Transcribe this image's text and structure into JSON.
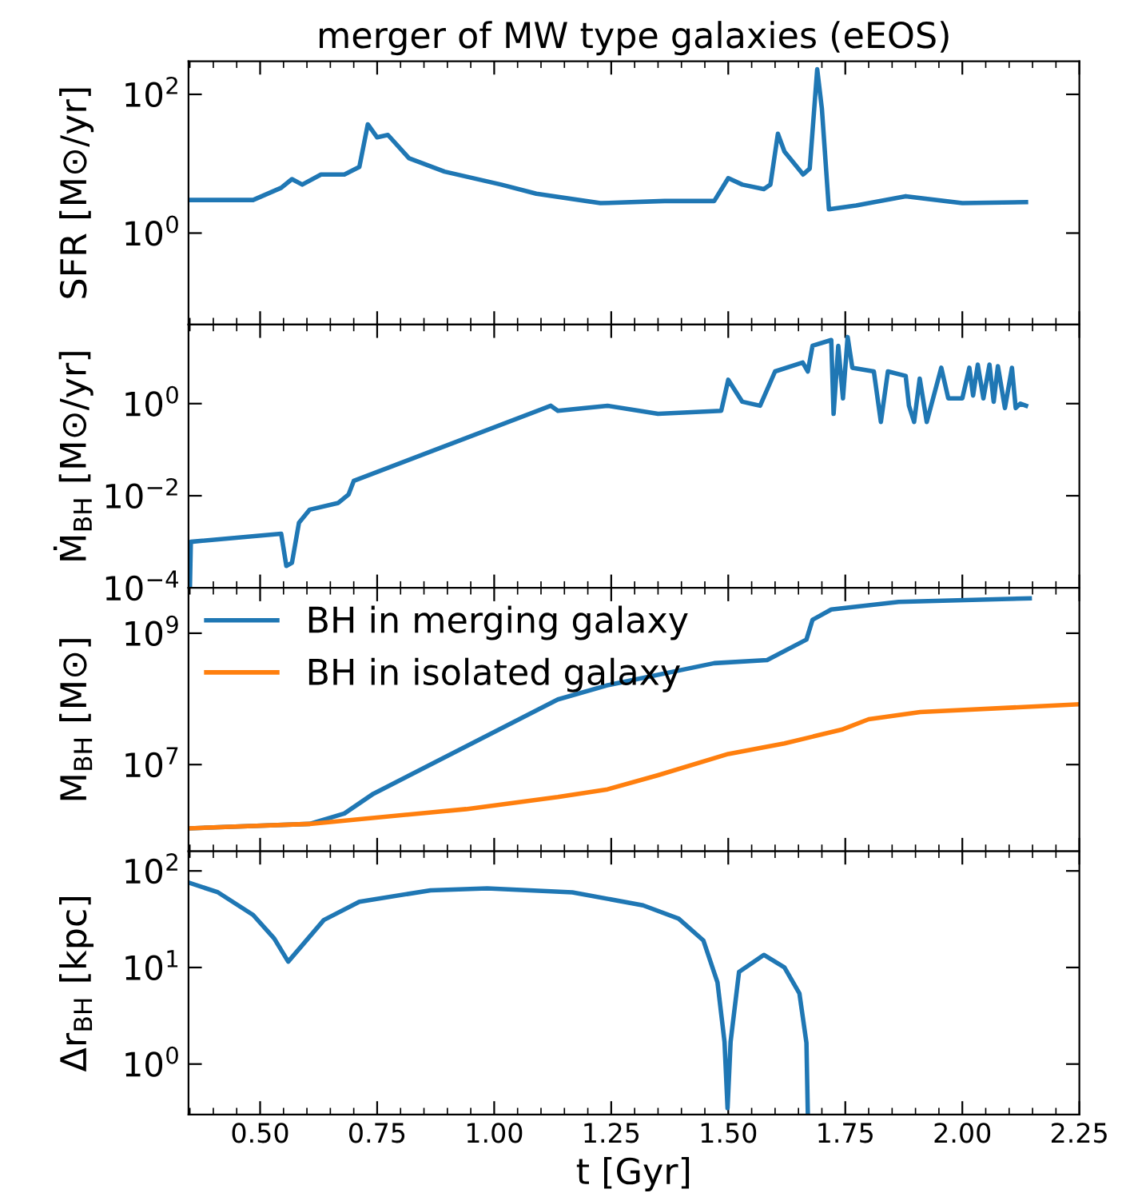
{
  "chart_data": [
    {
      "type": "line",
      "title": "merger of MW type galaxies (eEOS)",
      "ylabel": "SFR [M⊙/yr]",
      "log": "y",
      "xlim": [
        0.347,
        2.25
      ],
      "ylim": [
        0.048,
        300
      ],
      "yticks": [
        {
          "value": 1,
          "label": "10$^{0}$"
        },
        {
          "value": 100,
          "label": "10$^{2}$"
        }
      ],
      "tick_labels": "y",
      "legend": false,
      "series": [
        {
          "color": "#1f77b4",
          "x": [
            0.347,
            0.485,
            0.545,
            0.568,
            0.59,
            0.63,
            0.68,
            0.712,
            0.73,
            0.75,
            0.773,
            0.818,
            0.894,
            1.015,
            1.09,
            1.227,
            1.364,
            1.47,
            1.5,
            1.53,
            1.576,
            1.59,
            1.606,
            1.62,
            1.66,
            1.674,
            1.69,
            1.7,
            1.715,
            1.773,
            1.879,
            2.0,
            2.136
          ],
          "values": [
            3.0,
            3.0,
            4.5,
            6,
            5,
            7,
            7,
            9,
            37,
            24,
            26,
            12,
            7.7,
            5,
            3.7,
            2.7,
            2.9,
            2.9,
            6.2,
            5,
            4.3,
            5,
            27,
            15,
            7,
            8.5,
            230,
            62,
            2.2,
            2.5,
            3.4,
            2.7,
            2.8
          ]
        }
      ]
    },
    {
      "type": "line",
      "ylabel": "Ṁ$_{BH}$ [M⊙/yr]",
      "log": "y",
      "xlim": [
        0.347,
        2.25
      ],
      "ylim": [
        0.0001,
        52
      ],
      "yticks": [
        {
          "value": 0.0001,
          "label": "10$^{−4}$"
        },
        {
          "value": 0.01,
          "label": "10$^{−2}$"
        },
        {
          "value": 1,
          "label": "10$^{0}$"
        }
      ],
      "tick_labels": "y",
      "legend": false,
      "series": [
        {
          "color": "#1f77b4",
          "x": [
            0.35,
            0.352,
            0.545,
            0.556,
            0.568,
            0.583,
            0.606,
            0.667,
            0.689,
            0.7,
            1.121,
            1.136,
            1.242,
            1.35,
            1.485,
            1.5,
            1.53,
            1.568,
            1.6,
            1.659,
            1.67,
            1.68,
            1.72,
            1.725,
            1.735,
            1.745,
            1.755,
            1.765,
            1.811,
            1.826,
            1.841,
            1.879,
            1.886,
            1.897,
            1.909,
            1.924,
            1.955,
            1.97,
            2.0,
            2.015,
            2.023,
            2.033,
            2.045,
            2.058,
            2.067,
            2.076,
            2.091,
            2.106,
            2.114,
            2.124,
            2.136
          ],
          "values": [
            0.0001,
            0.001,
            0.0015,
            0.0003,
            0.00035,
            0.0026,
            0.005,
            0.007,
            0.0107,
            0.021,
            0.9,
            0.7,
            0.9,
            0.6,
            0.7,
            3.3,
            1.1,
            0.9,
            5,
            7.8,
            5,
            18,
            24,
            0.6,
            18,
            1.3,
            28,
            6,
            5,
            0.4,
            5,
            4,
            0.9,
            0.4,
            3.5,
            0.4,
            6,
            1.3,
            1.3,
            6,
            1.5,
            7,
            1.3,
            7,
            1.1,
            6.5,
            0.8,
            6,
            0.8,
            1.0,
            0.9
          ]
        }
      ]
    },
    {
      "type": "line",
      "ylabel": "M$_{BH}$ [M⊙]",
      "log": "y",
      "xlim": [
        0.347,
        2.25
      ],
      "ylim": [
        480000,
        4900000000
      ],
      "yticks": [
        {
          "value": 10000000,
          "label": "10$^{7}$"
        },
        {
          "value": 1000000000,
          "label": "10$^{9}$"
        }
      ],
      "tick_labels": "y",
      "legend": "top left",
      "series": [
        {
          "name": "BH in merging galaxy",
          "color": "#1f77b4",
          "x": [
            0.35,
            0.606,
            0.68,
            0.742,
            1.136,
            1.24,
            1.47,
            1.583,
            1.667,
            1.68,
            1.72,
            1.864,
            2.144
          ],
          "values": [
            1070000,
            1250000,
            1800000,
            3600000,
            98000000,
            160000000,
            350000000,
            390000000,
            800000000,
            1600000000,
            2300000000,
            3000000000,
            3400000000
          ]
        },
        {
          "name": "BH in isolated galaxy",
          "color": "#ff7f0e",
          "x": [
            0.35,
            0.606,
            0.94,
            1.136,
            1.242,
            1.35,
            1.5,
            1.62,
            1.742,
            1.8,
            1.91,
            2.25
          ],
          "values": [
            1070000,
            1250000,
            2100000,
            3200000,
            4200000,
            6900000,
            14500000,
            21000000,
            34000000,
            49000000,
            63000000,
            83000000
          ]
        }
      ]
    },
    {
      "type": "line",
      "ylabel": "Δr$_{BH}$ [kpc]",
      "xlabel": "t [Gyr]",
      "log": "y",
      "xlim": [
        0.347,
        2.25
      ],
      "xticks": [
        {
          "value": 0.5,
          "label": "0.50"
        },
        0.75,
        {
          "value": 1.0,
          "label": "1.00"
        },
        1.25,
        {
          "value": 1.5,
          "label": "1.50"
        },
        1.75,
        {
          "value": 2.0,
          "label": "2.00"
        },
        2.25
      ],
      "ylim": [
        0.3,
        160
      ],
      "yticks": [
        {
          "value": 1,
          "label": "10$^{0}$"
        },
        {
          "value": 10,
          "label": "10$^{1}$"
        },
        {
          "value": 100,
          "label": "10$^{2}$"
        }
      ],
      "legend": false,
      "series": [
        {
          "color": "#1f77b4",
          "x": [
            0.35,
            0.41,
            0.485,
            0.53,
            0.56,
            0.59,
            0.636,
            0.712,
            0.864,
            0.985,
            1.167,
            1.318,
            1.394,
            1.447,
            1.477,
            1.492,
            1.4985,
            1.505,
            1.523,
            1.576,
            1.62,
            1.652,
            1.667,
            1.67
          ],
          "values": [
            75,
            60,
            35,
            20,
            11.5,
            17,
            31,
            48,
            63,
            66,
            60,
            44,
            32,
            19,
            7,
            1.7,
            0.35,
            1.7,
            9,
            13.5,
            10,
            5.4,
            1.66,
            0.3
          ]
        }
      ]
    }
  ]
}
